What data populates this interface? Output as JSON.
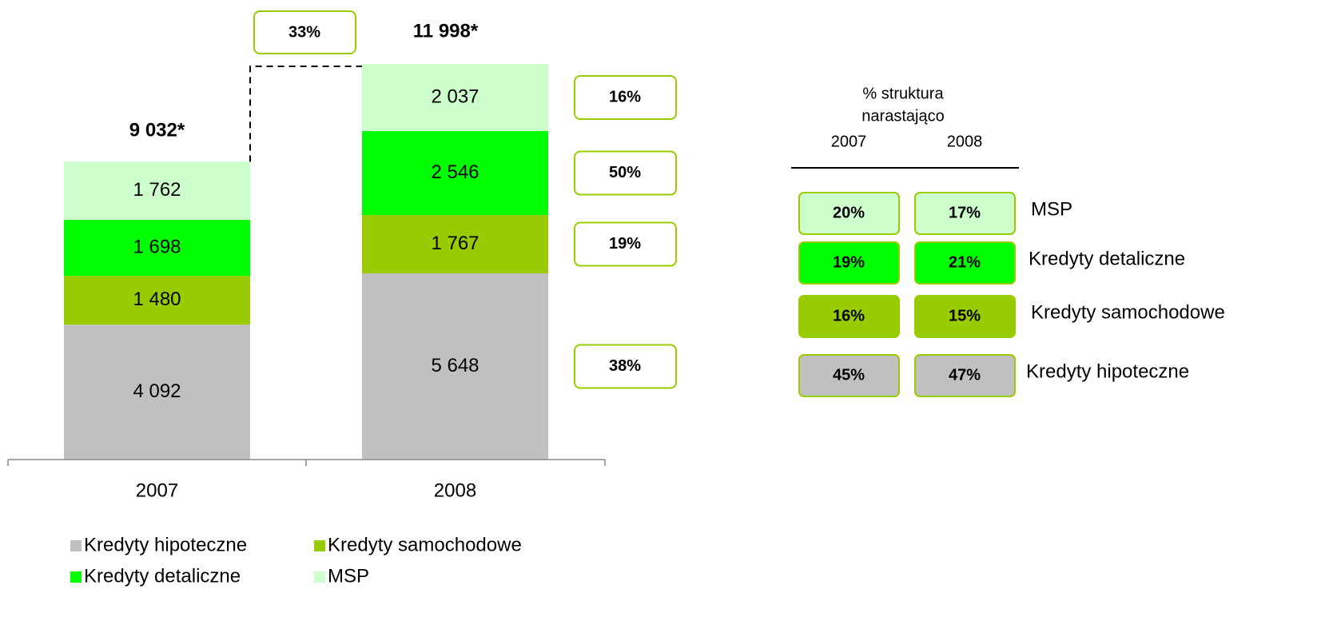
{
  "chart_data": {
    "type": "stacked_bar",
    "categories": [
      "2007",
      "2008"
    ],
    "series": [
      {
        "name": "Kredyty hipoteczne",
        "color": "#c0c0c0",
        "values": [
          4092,
          5648
        ],
        "value_labels": [
          "4 092",
          "5 648"
        ],
        "change": 38,
        "change_label": "38%"
      },
      {
        "name": "Kredyty samochodowe",
        "color": "#99cc00",
        "values": [
          1480,
          1767
        ],
        "value_labels": [
          "1 480",
          "1 767"
        ],
        "change": 19,
        "change_label": "19%"
      },
      {
        "name": "Kredyty detaliczne",
        "color": "#00ff00",
        "values": [
          1698,
          2546
        ],
        "value_labels": [
          "1 698",
          "2 546"
        ],
        "change": 50,
        "change_label": "50%"
      },
      {
        "name": "MSP",
        "color": "#ccffcc",
        "values": [
          1762,
          2037
        ],
        "value_labels": [
          "1 762",
          "2 037"
        ],
        "change": 16,
        "change_label": "16%"
      }
    ],
    "totals": {
      "values": [
        9032,
        11998
      ],
      "value_labels": [
        "9 032*",
        "11 998*"
      ]
    },
    "growth": {
      "value": 33,
      "label": "33%"
    }
  },
  "structure": {
    "title_lines": [
      "% struktura",
      "narastająco"
    ],
    "columns": [
      "2007",
      "2008"
    ],
    "rows": [
      {
        "label": "MSP",
        "color": "#ccffcc",
        "values": [
          "20%",
          "17%"
        ]
      },
      {
        "label": "Kredyty detaliczne",
        "color": "#00ff00",
        "values": [
          "19%",
          "21%"
        ]
      },
      {
        "label": "Kredyty samochodowe",
        "color": "#99cc00",
        "values": [
          "16%",
          "15%"
        ]
      },
      {
        "label": "Kredyty hipoteczne",
        "color": "#c0c0c0",
        "values": [
          "45%",
          "47%"
        ]
      }
    ]
  }
}
